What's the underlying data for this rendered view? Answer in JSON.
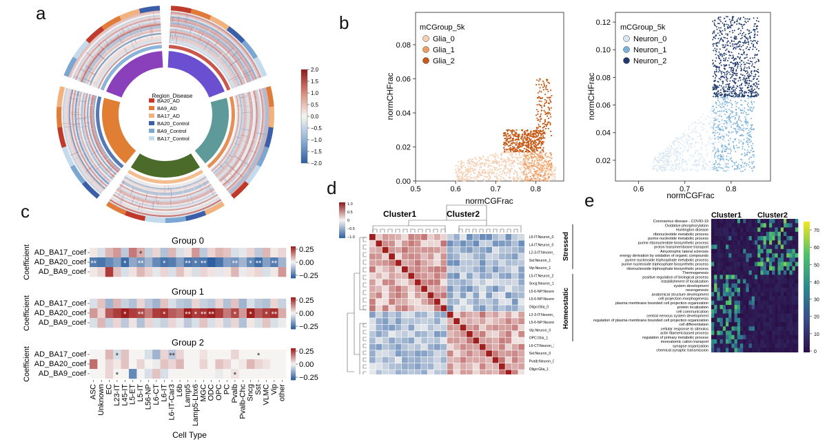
{
  "panel_letters": {
    "a": "a",
    "b": "b",
    "c": "c",
    "d": "d",
    "e": "e"
  },
  "panel_a": {
    "legend_title": "Region_Disease",
    "legend_items": [
      {
        "label": "BA20_AD",
        "color": "#c0392b"
      },
      {
        "label": "BA9_AD",
        "color": "#e07b39"
      },
      {
        "label": "BA17_AD",
        "color": "#f2b27d"
      },
      {
        "label": "BA20_Control",
        "color": "#3a5fa8"
      },
      {
        "label": "BA9_Control",
        "color": "#7aa6d1"
      },
      {
        "label": "BA17_Control",
        "color": "#c3dbec"
      }
    ],
    "colorbar_ticks": [
      "2.0",
      "1.5",
      "1.0",
      "0.5",
      "0.0",
      "−0.5",
      "−1.0",
      "−1.5",
      "−2.0"
    ],
    "sector_colors": [
      "#6a4fd0",
      "#5f9a9a",
      "#4b6b2a",
      "#e07f33",
      "#8a3fbb"
    ]
  },
  "panel_b": {
    "left": {
      "legend_title": "mCGroup_5k",
      "legend": [
        {
          "label": "Glia_0",
          "color": "#f6d0b4"
        },
        {
          "label": "Glia_1",
          "color": "#ee9d62"
        },
        {
          "label": "Glia_2",
          "color": "#c65a16"
        }
      ],
      "xlabel": "normCGFrac",
      "ylabel": "normCHFrac",
      "xticks": [
        "0.5",
        "0.6",
        "0.7",
        "0.8"
      ],
      "yticks": [
        "0.00",
        "0.02",
        "0.04",
        "0.06",
        "0.08"
      ]
    },
    "right": {
      "legend_title": "mCGroup_5k",
      "legend": [
        {
          "label": "Neuron_0",
          "color": "#d6e6f3"
        },
        {
          "label": "Neuron_1",
          "color": "#79b2dc"
        },
        {
          "label": "Neuron_2",
          "color": "#203a6e"
        }
      ],
      "xlabel": "normCGFrac",
      "ylabel": "normCHFrac",
      "xticks": [
        "0.6",
        "0.7",
        "0.8"
      ],
      "yticks": [
        "0.02",
        "0.04",
        "0.06",
        "0.08",
        "0.10",
        "0.12"
      ]
    }
  },
  "panel_c": {
    "ylabel": "Coefficient",
    "xlabel": "Cell Type",
    "row_labels": [
      "AD_BA17_coef",
      "AD_BA20_coef",
      "AD_BA9_coef"
    ],
    "cell_types": [
      "ASC",
      "Unknown",
      "EC",
      "L23-IT",
      "L45-IT",
      "L5-ET",
      "L5-IT",
      "L56-NP",
      "L6-CT",
      "L6-IT",
      "L6-IT-Car3",
      "L6b",
      "Lamp5",
      "Lamp5-Lhx6",
      "MGC",
      "ODC",
      "OPC",
      "PC",
      "Pvalb",
      "Pvalb-Chc",
      "Sncg",
      "Sst",
      "VLMC",
      "Vip",
      "other"
    ],
    "colorbar_ticks": [
      "0.25",
      "0.00",
      "−0.25"
    ],
    "groups": [
      {
        "title": "Group 0",
        "values": [
          [
            0.02,
            -0.05,
            0.1,
            0.15,
            -0.1,
            0.2,
            0.12,
            -0.08,
            0.05,
            -0.12,
            0.1,
            -0.05,
            0.03,
            0.15,
            -0.1,
            0.05,
            0.1,
            0.08,
            -0.05,
            -0.03,
            0.05,
            -0.1,
            0.1,
            0.02,
            0.05
          ],
          [
            -0.28,
            -0.3,
            -0.25,
            -0.2,
            -0.32,
            -0.18,
            -0.22,
            -0.15,
            -0.25,
            -0.3,
            -0.28,
            -0.2,
            -0.3,
            -0.28,
            -0.3,
            -0.35,
            -0.3,
            -0.2,
            -0.22,
            -0.15,
            -0.25,
            -0.32,
            -0.2,
            -0.28,
            -0.15
          ],
          [
            0.02,
            0.05,
            0.3,
            0.08,
            -0.05,
            0.03,
            0.1,
            0.05,
            -0.03,
            0.05,
            -0.05,
            0.08,
            0.02,
            -0.05,
            0.05,
            0.03,
            -0.03,
            0.02,
            0.1,
            -0.02,
            0.03,
            0.05,
            -0.05,
            0.02,
            0.15
          ]
        ],
        "stars": [
          [
            0,
            6,
            "*"
          ],
          [
            1,
            0,
            "**"
          ],
          [
            1,
            4,
            "*"
          ],
          [
            1,
            6,
            "**"
          ],
          [
            1,
            9,
            "*"
          ],
          [
            1,
            12,
            "**"
          ],
          [
            1,
            13,
            "*"
          ],
          [
            1,
            14,
            "**"
          ],
          [
            1,
            18,
            "**"
          ],
          [
            1,
            20,
            "*"
          ],
          [
            1,
            21,
            "**"
          ],
          [
            1,
            23,
            "**"
          ]
        ]
      },
      {
        "title": "Group 1",
        "values": [
          [
            -0.05,
            0.08,
            -0.15,
            0.1,
            -0.08,
            -0.12,
            0.05,
            -0.1,
            -0.15,
            0.08,
            -0.05,
            -0.1,
            -0.12,
            0.05,
            -0.08,
            -0.1,
            0.05,
            -0.12,
            0.08,
            -0.15,
            -0.05,
            -0.1,
            -0.12,
            0.05,
            -0.08
          ],
          [
            0.15,
            0.05,
            0.25,
            0.3,
            0.35,
            0.3,
            0.28,
            0.2,
            0.3,
            0.32,
            0.25,
            0.22,
            0.35,
            0.3,
            0.32,
            0.38,
            0.3,
            0.2,
            0.28,
            0.15,
            0.35,
            0.25,
            0.3,
            0.32,
            0.12
          ],
          [
            -0.05,
            0.1,
            -0.08,
            0.05,
            -0.1,
            0.03,
            -0.12,
            0.05,
            -0.05,
            -0.08,
            0.05,
            -0.03,
            -0.1,
            -0.05,
            0.08,
            -0.05,
            0.03,
            -0.08,
            0.05,
            -0.12,
            0.02,
            -0.05,
            0.08,
            -0.05,
            -0.02
          ]
        ],
        "stars": [
          [
            1,
            4,
            "*"
          ],
          [
            1,
            6,
            "**"
          ],
          [
            1,
            9,
            "*"
          ],
          [
            1,
            12,
            "**"
          ],
          [
            1,
            13,
            "*"
          ],
          [
            1,
            14,
            "**"
          ],
          [
            1,
            15,
            "**"
          ],
          [
            1,
            18,
            "*"
          ],
          [
            1,
            20,
            "*"
          ],
          [
            1,
            22,
            "*"
          ],
          [
            1,
            23,
            "**"
          ]
        ]
      },
      {
        "title": "Group 2",
        "values": [
          [
            0.0,
            0.0,
            0.1,
            -0.05,
            0.08,
            0.0,
            0.0,
            -0.05,
            -0.15,
            0.05,
            -0.1,
            0.05,
            0.0,
            0.0,
            0.03,
            0.0,
            0.0,
            0.0,
            0.05,
            0.0,
            0.0,
            0.0,
            0.0,
            0.0,
            0.0
          ],
          [
            0.22,
            0.0,
            0.05,
            0.02,
            0.08,
            0.0,
            0.05,
            0.0,
            -0.02,
            0.08,
            0.05,
            0.1,
            0.0,
            0.0,
            0.05,
            0.0,
            0.08,
            0.05,
            0.0,
            0.02,
            0.1,
            0.05,
            0.03,
            0.0,
            0.0
          ],
          [
            0.0,
            0.0,
            0.05,
            0.0,
            0.0,
            -0.25,
            0.0,
            -0.05,
            0.08,
            -0.05,
            0.0,
            0.0,
            0.0,
            0.0,
            0.0,
            0.0,
            -0.02,
            0.0,
            0.03,
            0.0,
            0.0,
            0.0,
            0.0,
            0.0,
            0.0
          ]
        ],
        "stars": [
          [
            0,
            3,
            "*"
          ],
          [
            0,
            10,
            "**"
          ],
          [
            0,
            21,
            "*"
          ],
          [
            2,
            3,
            "*"
          ],
          [
            2,
            18,
            "*"
          ]
        ]
      }
    ]
  },
  "panel_d": {
    "cluster1": "Cluster1",
    "cluster2": "Cluster2",
    "colorbar_ticks": [
      "1.0",
      "0.5",
      "0",
      "−0.5",
      "−1.0"
    ],
    "row_labels": [
      "L5-IT:Neuron_0",
      "L4-IT:Neuron_0",
      "L2-3-IT:Neuron_0",
      "Sst:Neuron_1",
      "Vip:Neuron_1",
      "L5-IT:Neuron_2",
      "Sncg:Neuron_1",
      "L5-6-NP:Neuron_2",
      "L5-6-NP:Neuron_1",
      "Oligo:Glia_0",
      "L2-3-IT:Neuron_1",
      "L5-6-NP:Neuron_0",
      "Vip:Neuron_0",
      "OPC:Glia_1",
      "L6-CT:Neuron_1",
      "Sst:Neuron_0",
      "Pvalb:Neuron_0",
      "Oligo:Glia_1",
      "Sst:Neuron_2",
      "Pax6:Neuron_1"
    ]
  },
  "panel_e": {
    "cluster1": "Cluster1",
    "cluster2": "Cluster2",
    "stressed_label": "Stressed",
    "homeostatic_label": "Homeostatic",
    "colorbar_ticks": [
      "70",
      "60",
      "50",
      "40",
      "30",
      "20",
      "10",
      "0"
    ],
    "terms": [
      "Coronavirus disease - COVID-19",
      "Oxidative phosphorylation",
      "Huntington disease",
      "ribonucleotide metabolic process",
      "purine nucleotide metabolic process",
      "purine ribonucleotide biosynthetic process",
      "proton transmembrane transport",
      "Amyotrophic lateral sclerosis",
      "energy derivation by oxidation of organic compounds",
      "purine nucleoside triphosphate metabolic process",
      "purine nucleoside triphosphate biosynthetic process",
      "ribonucleoside triphosphate biosynthetic process",
      "Thermogenesis",
      "positive regulation of biological process",
      "establishment of localization",
      "system development",
      "neurogenesis",
      "anatomical structure development",
      "cell projection morphogenesis",
      "plasma membrane bounded cell projection organization",
      "protein localization",
      "cell communication",
      "central nervous system development",
      "regulation of plasma membrane bounded cell projection organization",
      "cell differentiation",
      "cellular response to stimulus",
      "actin filament-based process",
      "regulation of primary metabolic process",
      "monoatomic cation transport",
      "synapse organization",
      "chemical synaptic transmission"
    ]
  }
}
